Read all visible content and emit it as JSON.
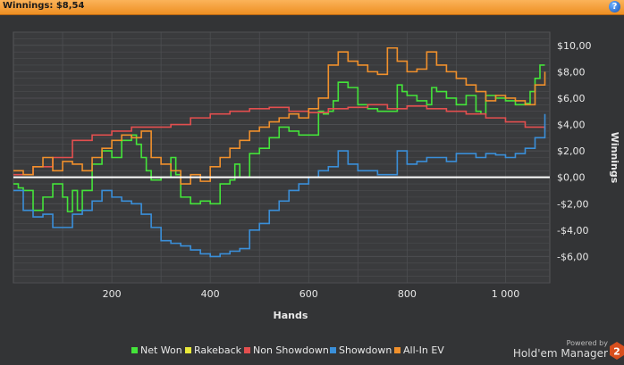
{
  "header": {
    "title": "Winnings: $8,54",
    "help_icon": "help-icon"
  },
  "branding": {
    "powered_by": "Powered by",
    "name": "Hold'em Manager",
    "logo_number": "2"
  },
  "colors": {
    "background": "#333436",
    "plot_bg": "#3a3b3d",
    "grid": "#4d4e51",
    "zero_line": "#ffffff",
    "net_won": "#44e43a",
    "rakeback": "#e8e83a",
    "non_showdown": "#e34f4f",
    "showdown": "#3a8fd9",
    "all_in_ev": "#f0902c"
  },
  "chart_data": {
    "type": "line",
    "title": "",
    "xlabel": "Hands",
    "ylabel": "Winnings",
    "xlim": [
      0,
      1090
    ],
    "ylim": [
      -8,
      11
    ],
    "x_ticks": [
      200,
      400,
      600,
      800,
      1000
    ],
    "x_tick_labels": [
      "200",
      "400",
      "600",
      "800",
      "1 000"
    ],
    "y_ticks": [
      -6,
      -4,
      -2,
      0,
      2,
      4,
      6,
      8,
      10
    ],
    "y_tick_labels": [
      "-$6,00",
      "-$4,00",
      "-$2,00",
      "$0,00",
      "$2,00",
      "$4,00",
      "$6,00",
      "$8,00",
      "$10,00"
    ],
    "grid": true,
    "legend_position": "bottom",
    "series": [
      {
        "name": "Net Won",
        "color": "#44e43a",
        "x": [
          0,
          10,
          20,
          40,
          60,
          80,
          100,
          110,
          120,
          130,
          140,
          160,
          180,
          200,
          220,
          240,
          250,
          260,
          270,
          280,
          300,
          320,
          330,
          340,
          360,
          380,
          400,
          420,
          440,
          450,
          460,
          480,
          500,
          520,
          540,
          560,
          580,
          600,
          620,
          630,
          640,
          650,
          660,
          680,
          700,
          720,
          740,
          760,
          780,
          790,
          800,
          820,
          840,
          850,
          860,
          880,
          900,
          920,
          940,
          950,
          960,
          980,
          1000,
          1020,
          1040,
          1050,
          1060,
          1070,
          1080
        ],
        "values": [
          -0.5,
          -0.8,
          -1.0,
          -2.5,
          -1.5,
          -0.5,
          -1.5,
          -2.6,
          -1.0,
          -2.5,
          -1.0,
          1.0,
          2.0,
          1.5,
          2.8,
          3.2,
          2.5,
          1.5,
          0.5,
          -0.2,
          0.0,
          1.5,
          0.2,
          -1.5,
          -2.0,
          -1.8,
          -2.0,
          -0.5,
          -0.2,
          1.0,
          0.0,
          1.8,
          2.2,
          3.0,
          3.8,
          3.5,
          3.2,
          3.2,
          5.0,
          4.8,
          5.0,
          5.8,
          7.2,
          6.8,
          5.5,
          5.2,
          5.0,
          5.0,
          7.0,
          6.5,
          6.2,
          5.8,
          5.5,
          6.8,
          6.5,
          6.0,
          5.5,
          6.2,
          5.0,
          4.8,
          6.2,
          6.0,
          5.8,
          5.5,
          5.6,
          6.5,
          7.5,
          8.5,
          8.5
        ]
      },
      {
        "name": "Rakeback",
        "color": "#e8e83a",
        "x": [
          0,
          1080
        ],
        "values": [
          0,
          0
        ]
      },
      {
        "name": "Non Showdown",
        "color": "#e34f4f",
        "x": [
          0,
          40,
          80,
          120,
          160,
          200,
          240,
          280,
          320,
          360,
          400,
          440,
          480,
          520,
          560,
          600,
          640,
          680,
          720,
          760,
          800,
          840,
          880,
          920,
          960,
          1000,
          1040,
          1080
        ],
        "values": [
          0.2,
          0.8,
          1.5,
          2.8,
          3.2,
          3.5,
          3.8,
          3.8,
          4.0,
          4.5,
          4.8,
          5.0,
          5.2,
          5.3,
          5.0,
          4.9,
          5.2,
          5.3,
          5.5,
          5.2,
          5.4,
          5.2,
          5.0,
          4.8,
          4.5,
          4.2,
          3.8,
          3.6
        ]
      },
      {
        "name": "Showdown",
        "color": "#3a8fd9",
        "x": [
          0,
          20,
          40,
          60,
          80,
          100,
          120,
          140,
          160,
          180,
          200,
          220,
          240,
          260,
          280,
          300,
          320,
          340,
          360,
          380,
          400,
          420,
          440,
          460,
          480,
          500,
          520,
          540,
          560,
          580,
          600,
          620,
          640,
          660,
          680,
          700,
          720,
          740,
          760,
          780,
          800,
          820,
          840,
          860,
          880,
          900,
          920,
          940,
          960,
          980,
          1000,
          1020,
          1040,
          1060,
          1080
        ],
        "values": [
          -1.0,
          -2.5,
          -3.0,
          -2.8,
          -3.8,
          -3.8,
          -2.8,
          -2.5,
          -1.8,
          -1.0,
          -1.5,
          -1.8,
          -2.0,
          -2.8,
          -3.8,
          -4.8,
          -5.0,
          -5.2,
          -5.5,
          -5.8,
          -6.0,
          -5.8,
          -5.6,
          -5.4,
          -4.0,
          -3.5,
          -2.5,
          -1.8,
          -1.0,
          -0.5,
          0.0,
          0.5,
          0.8,
          2.0,
          1.0,
          0.5,
          0.5,
          0.2,
          0.2,
          2.0,
          1.0,
          1.2,
          1.5,
          1.5,
          1.2,
          1.8,
          1.8,
          1.5,
          1.8,
          1.7,
          1.5,
          1.8,
          2.2,
          3.0,
          4.8
        ]
      },
      {
        "name": "All-In EV",
        "color": "#f0902c",
        "x": [
          0,
          20,
          40,
          60,
          80,
          100,
          120,
          140,
          160,
          180,
          200,
          220,
          240,
          260,
          280,
          300,
          320,
          340,
          360,
          380,
          400,
          420,
          440,
          460,
          480,
          500,
          520,
          540,
          560,
          580,
          600,
          620,
          640,
          660,
          680,
          700,
          720,
          740,
          760,
          780,
          800,
          820,
          840,
          860,
          880,
          900,
          920,
          940,
          960,
          980,
          1000,
          1020,
          1040,
          1060,
          1080
        ],
        "values": [
          0.5,
          0.2,
          0.8,
          1.5,
          0.5,
          1.2,
          1.0,
          0.5,
          1.5,
          2.2,
          2.8,
          3.2,
          3.0,
          3.5,
          1.5,
          1.0,
          0.5,
          -0.5,
          0.2,
          -0.3,
          0.8,
          1.5,
          2.2,
          2.8,
          3.5,
          3.8,
          4.2,
          4.5,
          4.8,
          4.5,
          5.2,
          6.0,
          8.5,
          9.5,
          8.8,
          8.5,
          8.0,
          7.8,
          9.8,
          8.8,
          8.0,
          8.2,
          9.5,
          8.5,
          8.0,
          7.5,
          7.0,
          6.5,
          5.8,
          6.2,
          6.0,
          5.8,
          5.5,
          7.0,
          8.0
        ]
      }
    ]
  }
}
